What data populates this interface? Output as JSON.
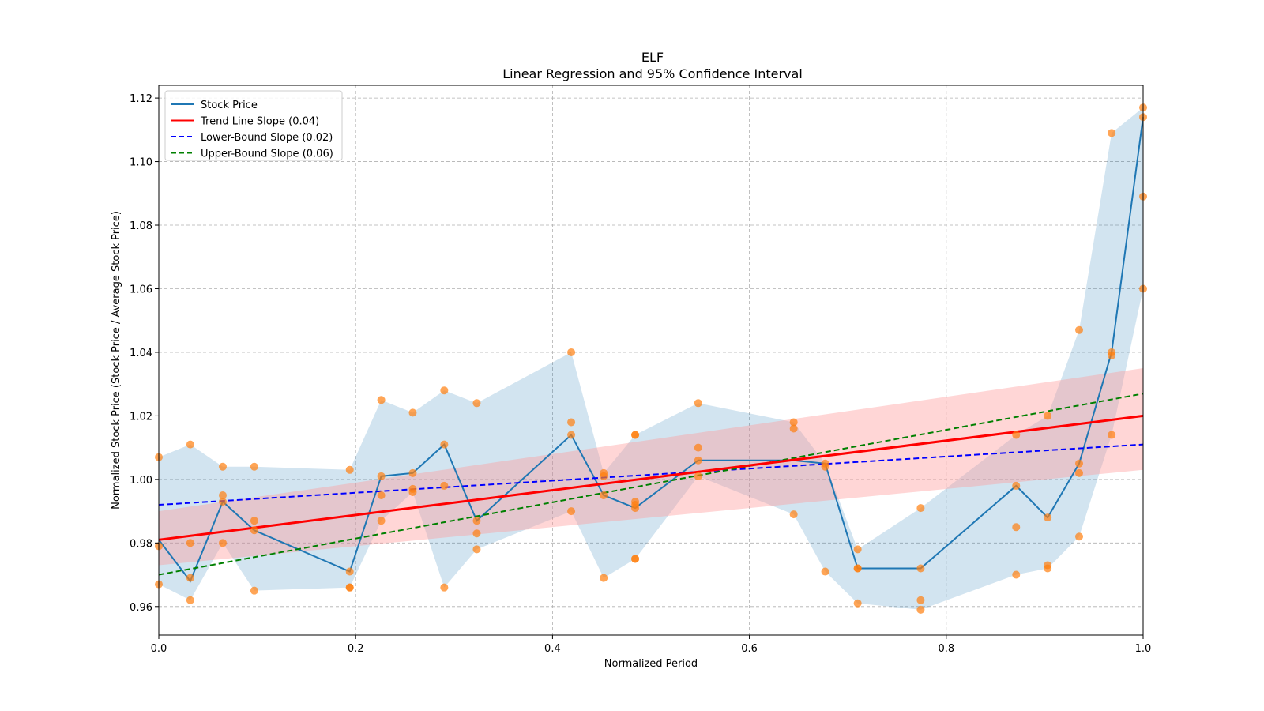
{
  "chart_data": {
    "type": "line",
    "title": "ELF",
    "subtitle": "Linear Regression and 95% Confidence Interval",
    "xlabel": "Normalized Period",
    "ylabel": "Normalized Stock Price (Stock Price / Average Stock Price)",
    "xlim": [
      0.0,
      1.0
    ],
    "ylim": [
      0.951,
      1.124
    ],
    "xticks": [
      0.0,
      0.2,
      0.4,
      0.6,
      0.8,
      1.0
    ],
    "xtick_labels": [
      "0.0",
      "0.2",
      "0.4",
      "0.6",
      "0.8",
      "1.0"
    ],
    "yticks": [
      0.96,
      0.98,
      1.0,
      1.02,
      1.04,
      1.06,
      1.08,
      1.1,
      1.12
    ],
    "ytick_labels": [
      "0.96",
      "0.98",
      "1.00",
      "1.02",
      "1.04",
      "1.06",
      "1.08",
      "1.10",
      "1.12"
    ],
    "grid": true,
    "legend_position": "top-left",
    "legend": [
      {
        "label": "Stock Price",
        "color": "#1f77b4",
        "style": "solid"
      },
      {
        "label": "Trend Line Slope (0.04)",
        "color": "#ff0000",
        "style": "solid"
      },
      {
        "label": "Lower-Bound Slope (0.02)",
        "color": "#0000ff",
        "style": "dashed"
      },
      {
        "label": "Upper-Bound Slope (0.06)",
        "color": "#008000",
        "style": "dashed"
      }
    ],
    "colors": {
      "stock_line": "#1f77b4",
      "stock_band": "#1f77b4",
      "scatter": "#ff7f0e",
      "trend": "#ff0000",
      "trend_band": "#ff9999",
      "lower": "#0000ff",
      "upper": "#008000"
    },
    "groups": [
      {
        "x": 0.0,
        "line": 0.981,
        "points": [
          1.007,
          0.979,
          0.967
        ]
      },
      {
        "x": 0.032,
        "line": 0.968,
        "points": [
          1.011,
          0.98,
          0.969,
          0.962
        ]
      },
      {
        "x": 0.065,
        "line": 0.993,
        "points": [
          1.004,
          0.995,
          0.993,
          0.98
        ]
      },
      {
        "x": 0.097,
        "line": 0.984,
        "points": [
          1.004,
          0.987,
          0.984,
          0.965
        ]
      },
      {
        "x": 0.194,
        "line": 0.971,
        "points": [
          1.003,
          0.971,
          0.966,
          0.966
        ]
      },
      {
        "x": 0.226,
        "line": 1.001,
        "points": [
          1.025,
          1.001,
          0.995,
          0.987
        ]
      },
      {
        "x": 0.258,
        "line": 1.002,
        "points": [
          1.021,
          1.002,
          0.997,
          0.996
        ]
      },
      {
        "x": 0.29,
        "line": 1.011,
        "points": [
          1.028,
          1.011,
          0.998,
          0.966
        ]
      },
      {
        "x": 0.323,
        "line": 0.987,
        "points": [
          1.024,
          0.987,
          0.983,
          0.978
        ]
      },
      {
        "x": 0.419,
        "line": 1.014,
        "points": [
          1.04,
          1.018,
          1.014,
          0.99
        ]
      },
      {
        "x": 0.452,
        "line": 0.995,
        "points": [
          1.002,
          1.001,
          0.995,
          0.969
        ]
      },
      {
        "x": 0.484,
        "line": 0.991,
        "points": [
          1.014,
          1.014,
          0.993,
          0.992,
          0.991,
          0.975,
          0.975
        ]
      },
      {
        "x": 0.548,
        "line": 1.006,
        "points": [
          1.024,
          1.01,
          1.006,
          1.001
        ]
      },
      {
        "x": 0.645,
        "line": 1.006,
        "points": [
          1.018,
          1.016,
          0.989
        ]
      },
      {
        "x": 0.677,
        "line": 1.005,
        "points": [
          1.005,
          1.004,
          0.971
        ]
      },
      {
        "x": 0.71,
        "line": 0.972,
        "points": [
          0.978,
          0.972,
          0.972,
          0.961
        ]
      },
      {
        "x": 0.774,
        "line": 0.972,
        "points": [
          0.991,
          0.972,
          0.962,
          0.959
        ]
      },
      {
        "x": 0.871,
        "line": 0.998,
        "points": [
          1.014,
          0.998,
          0.985,
          0.97
        ]
      },
      {
        "x": 0.903,
        "line": 0.988,
        "points": [
          1.02,
          0.988,
          0.973,
          0.972
        ]
      },
      {
        "x": 0.935,
        "line": 1.005,
        "points": [
          1.047,
          1.005,
          1.002,
          0.982
        ]
      },
      {
        "x": 0.968,
        "line": 1.04,
        "points": [
          1.109,
          1.04,
          1.039,
          1.014
        ]
      },
      {
        "x": 1.0,
        "line": 1.114,
        "points": [
          1.117,
          1.114,
          1.089,
          1.06
        ]
      }
    ],
    "trend_line": {
      "x": [
        0.0,
        1.0
      ],
      "y": [
        0.981,
        1.02
      ]
    },
    "trend_ci": {
      "x": [
        0.0,
        1.0
      ],
      "lower": [
        0.973,
        1.003
      ],
      "upper": [
        0.99,
        1.035
      ]
    },
    "lower_bound_line": {
      "x": [
        0.0,
        1.0
      ],
      "y": [
        0.992,
        1.011
      ]
    },
    "upper_bound_line": {
      "x": [
        0.0,
        1.0
      ],
      "y": [
        0.97,
        1.027
      ]
    }
  }
}
